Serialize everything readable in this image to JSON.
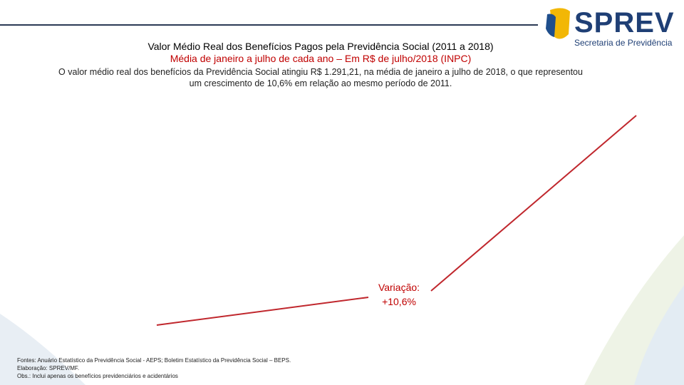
{
  "logo": {
    "name": "SPREV",
    "subtitle": "Secretaria de Previdência"
  },
  "header": {
    "title": "Valor Médio Real dos Benefícios Pagos pela Previdência Social (2011 a 2018)",
    "subtitle": "Média de janeiro a julho de cada ano – Em R$ de julho/2018 (INPC)"
  },
  "summary": [
    "O valor médio real dos benefícios da Previdência Social atingiu R$ 1.291,21, na média de janeiro a julho de 2018, o que representou",
    "um crescimento de 10,6% em relação ao mesmo período de 2011."
  ],
  "annotation": [
    "Variação:",
    "+10,6%"
  ],
  "footnotes": [
    "Fontes: Anuário Estatístico da Previdência Social - AEPS; Boletim Estatístico da Previdência Social – BEPS.",
    "Elaboração: SPREV/MF.",
    "Obs.: Inclui apenas os benefícios previdenciários e acidentários"
  ]
}
